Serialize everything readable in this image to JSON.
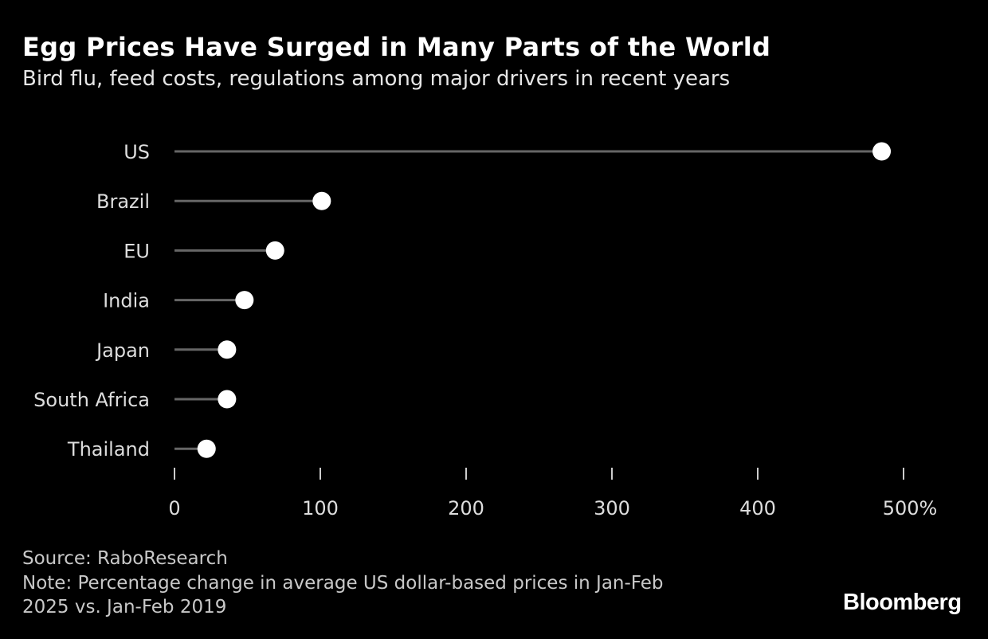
{
  "title": "Egg Prices Have Surged in Many Parts of the World",
  "subtitle": "Bird flu, feed costs, regulations among major drivers in recent years",
  "chart_data": {
    "type": "dot",
    "categories": [
      "US",
      "Brazil",
      "EU",
      "India",
      "Japan",
      "South Africa",
      "Thailand"
    ],
    "values": [
      485,
      101,
      69,
      48,
      36,
      36,
      22
    ],
    "xlim": [
      0,
      500
    ],
    "xticks": [
      "0",
      "100",
      "200",
      "300",
      "400",
      "500%"
    ],
    "xtick_values": [
      0,
      100,
      200,
      300,
      400,
      500
    ],
    "grid": false,
    "colors": {
      "background": "#000000",
      "stem": "#666666",
      "dot": "#ffffff",
      "text": "#dddddd"
    }
  },
  "source": "Source: RaboResearch",
  "note_line1": "Note: Percentage change in average US dollar-based prices in Jan-Feb",
  "note_line2": "2025 vs. Jan-Feb 2019",
  "logo": "Bloomberg"
}
